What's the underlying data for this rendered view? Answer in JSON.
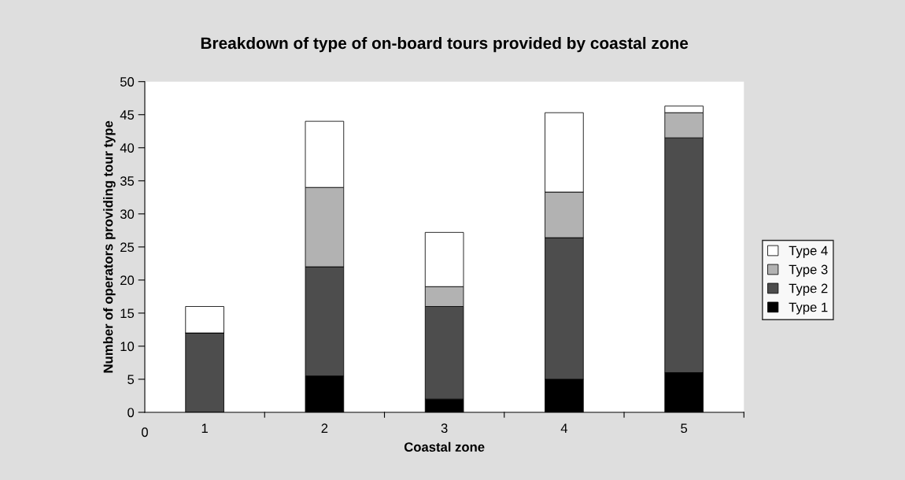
{
  "chart_data": {
    "type": "bar",
    "title": "Breakdown of type of on-board tours provided by coastal zone",
    "xlabel": "Coastal zone",
    "ylabel": "Number of operators providing tour type",
    "categories": [
      "1",
      "2",
      "3",
      "4",
      "5"
    ],
    "stacked": true,
    "series": [
      {
        "name": "Type 1",
        "color": "#000000",
        "values": [
          0,
          5.5,
          2,
          5,
          6
        ]
      },
      {
        "name": "Type 2",
        "color": "#4d4d4d",
        "values": [
          12,
          16.5,
          14,
          21.4,
          35.5
        ]
      },
      {
        "name": "Type 3",
        "color": "#b2b2b2",
        "values": [
          0,
          12,
          3,
          6.9,
          3.8
        ]
      },
      {
        "name": "Type 4",
        "color": "#ffffff",
        "values": [
          4,
          10,
          8.2,
          12,
          1
        ]
      }
    ],
    "ylim": [
      0,
      50
    ],
    "yticks": [
      0,
      5,
      10,
      15,
      20,
      25,
      30,
      35,
      40,
      45,
      50
    ],
    "annotations": [
      "0"
    ],
    "legend": "right",
    "grid": false
  }
}
